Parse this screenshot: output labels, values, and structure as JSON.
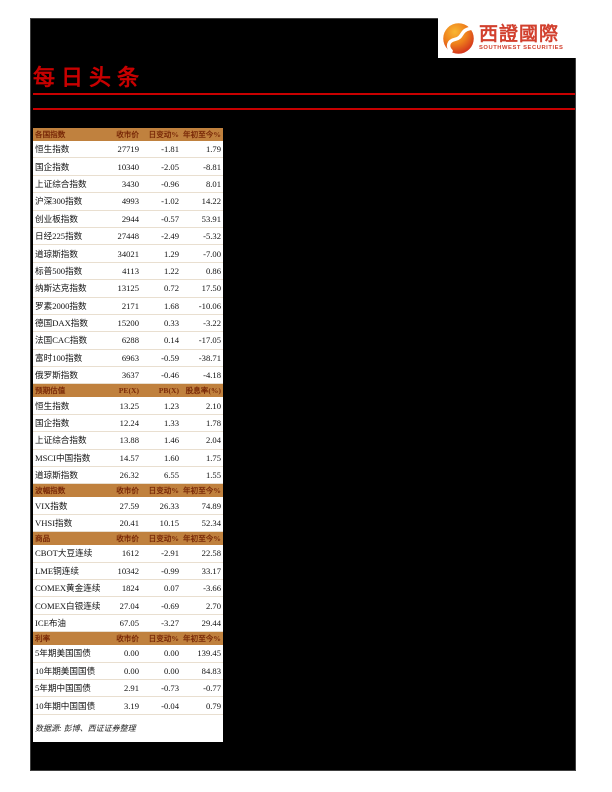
{
  "logo": {
    "cn": "西證國際",
    "en": "SOUTHWEST SECURITIES"
  },
  "page": {
    "title": "每日头条",
    "footer_note": "数据源: 彭博、西证证券整理"
  },
  "colors": {
    "accent_red": "#c80000",
    "logo_red": "#d2402e",
    "section_header_bg": "#c0813e",
    "section_header_text": "#7a2a08"
  },
  "tables": [
    {
      "header": [
        "各国指数",
        "收市价",
        "日变动%",
        "年初至今%"
      ],
      "rows": [
        [
          "恒生指数",
          "27719",
          "-1.81",
          "1.79"
        ],
        [
          "国企指数",
          "10340",
          "-2.05",
          "-8.81"
        ],
        [
          "上证综合指数",
          "3430",
          "-0.96",
          "8.01"
        ],
        [
          "沪深300指数",
          "4993",
          "-1.02",
          "14.22"
        ],
        [
          "创业板指数",
          "2944",
          "-0.57",
          "53.91"
        ],
        [
          "日经225指数",
          "27448",
          "-2.49",
          "-5.32"
        ],
        [
          "道琼斯指数",
          "34021",
          "1.29",
          "-7.00"
        ],
        [
          "标普500指数",
          "4113",
          "1.22",
          "0.86"
        ],
        [
          "纳斯达克指数",
          "13125",
          "0.72",
          "17.50"
        ],
        [
          "罗素2000指数",
          "2171",
          "1.68",
          "-10.06"
        ],
        [
          "德国DAX指数",
          "15200",
          "0.33",
          "-3.22"
        ],
        [
          "法国CAC指数",
          "6288",
          "0.14",
          "-17.05"
        ],
        [
          "富时100指数",
          "6963",
          "-0.59",
          "-38.71"
        ],
        [
          "俄罗斯指数",
          "3637",
          "-0.46",
          "-4.18"
        ]
      ]
    },
    {
      "header": [
        "预期估值",
        "PE(X)",
        "PB(X)",
        "股息率(%)"
      ],
      "rows": [
        [
          "恒生指数",
          "13.25",
          "1.23",
          "2.10"
        ],
        [
          "国企指数",
          "12.24",
          "1.33",
          "1.78"
        ],
        [
          "上证综合指数",
          "13.88",
          "1.46",
          "2.04"
        ],
        [
          "MSCI中国指数",
          "14.57",
          "1.60",
          "1.75"
        ],
        [
          "道琼斯指数",
          "26.32",
          "6.55",
          "1.55"
        ]
      ]
    },
    {
      "header": [
        "波幅指数",
        "收市价",
        "日变动%",
        "年初至今%"
      ],
      "rows": [
        [
          "VIX指数",
          "27.59",
          "26.33",
          "74.89"
        ],
        [
          "VHSI指数",
          "20.41",
          "10.15",
          "52.34"
        ]
      ]
    },
    {
      "header": [
        "商品",
        "收市价",
        "日变动%",
        "年初至今%"
      ],
      "rows": [
        [
          "CBOT大豆连续",
          "1612",
          "-2.91",
          "22.58"
        ],
        [
          "LME铜连续",
          "10342",
          "-0.99",
          "33.17"
        ],
        [
          "COMEX黄金连续",
          "1824",
          "0.07",
          "-3.66"
        ],
        [
          "COMEX白银连续",
          "27.04",
          "-0.69",
          "2.70"
        ],
        [
          "ICE布油",
          "67.05",
          "-3.27",
          "29.44"
        ]
      ]
    },
    {
      "header": [
        "利率",
        "收市价",
        "日变动%",
        "年初至今%"
      ],
      "rows": [
        [
          "5年期美国国债",
          "0.00",
          "0.00",
          "139.45"
        ],
        [
          "10年期美国国债",
          "0.00",
          "0.00",
          "84.83"
        ],
        [
          "5年期中国国债",
          "2.91",
          "-0.73",
          "-0.77"
        ],
        [
          "10年期中国国债",
          "3.19",
          "-0.04",
          "0.79"
        ]
      ]
    }
  ]
}
